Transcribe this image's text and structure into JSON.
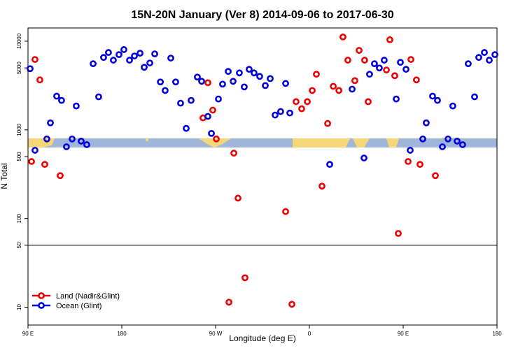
{
  "chart_data": {
    "type": "scatter",
    "title": "15N-20N January (Ver 8)   2014-09-06 to 2017-06-30",
    "x_label": "Longitude (deg E)",
    "y_label": "N Total",
    "xlim": [
      90,
      540
    ],
    "xticks": [
      {
        "value": 90,
        "label": "90 E"
      },
      180,
      {
        "value": 270,
        "label": "90 W"
      },
      {
        "value": 360,
        "label": "0"
      },
      {
        "value": 450,
        "label": "90 E"
      },
      {
        "value": 540,
        "label": "180"
      }
    ],
    "ylim": [
      6.3,
      14100
    ],
    "log_y": true,
    "yticks": [
      10,
      50,
      100,
      500,
      1000,
      5000,
      10000
    ],
    "break_line": 50,
    "legend": "bottom-left",
    "series": [
      {
        "name": "Land (Nadir&Glint)",
        "color": "#ee0000",
        "x": [
          93.4,
          96.7,
          101.4,
          106.1,
          120.9,
          257.9,
          262.6,
          267.3,
          270.7,
          282.8,
          287.5,
          291.5,
          298.2,
          337.2,
          343.2,
          347.2,
          352.6,
          358.0,
          362.7,
          366.7,
          372.1,
          377.5,
          382.9,
          388.3,
          392.2,
          396.9,
          403.6,
          407.7,
          413.0,
          416.4,
          433.9,
          437.2,
          441.9,
          445.3,
          454.7,
          457.4,
          462.7,
          466.1,
          480.9
        ],
        "values": [
          440,
          6220,
          3660,
          408,
          305,
          1365,
          3400,
          1670,
          790,
          11.4,
          547,
          170,
          21.5,
          120,
          10.8,
          2080,
          1730,
          2080,
          2780,
          4240,
          232,
          1180,
          3100,
          2780,
          11160,
          6110,
          3590,
          7880,
          6110,
          2080,
          4730,
          10380,
          4080,
          68,
          440,
          6220,
          3660,
          408,
          305
        ]
      },
      {
        "name": "Ocean (Glint)",
        "color": "#0000dd",
        "x": [
          92.0,
          96.7,
          108.1,
          111.5,
          117.5,
          122.2,
          126.9,
          132.3,
          136.3,
          141.0,
          146.4,
          152.5,
          157.8,
          162.5,
          167.2,
          171.9,
          177.3,
          182.0,
          187.4,
          192.1,
          197.5,
          201.5,
          206.9,
          211.6,
          217.0,
          221.6,
          227.0,
          231.7,
          236.4,
          241.8,
          246.5,
          252.5,
          256.6,
          262.6,
          266.0,
          272.7,
          276.7,
          282.1,
          286.8,
          292.8,
          297.5,
          302.2,
          306.9,
          312.3,
          317.7,
          322.4,
          327.1,
          332.4,
          337.2,
          341.2,
          379.5,
          401.0,
          412.4,
          417.7,
          422.4,
          427.1,
          431.8,
          443.3,
          447.3,
          452.7,
          456.7,
          468.8,
          472.1,
          478.2,
          482.9,
          487.6,
          493.0,
          497.6,
          501.7,
          507.0,
          512.4,
          518.5,
          522.5,
          527.9,
          532.6,
          538.0
        ],
        "values": [
          4900,
          589,
          790,
          1200,
          2400,
          2150,
          645,
          790,
          1860,
          747,
          681,
          5570,
          2360,
          6560,
          7460,
          6110,
          7060,
          8040,
          6110,
          6810,
          7320,
          5080,
          5680,
          7190,
          3470,
          2780,
          6450,
          3470,
          2000,
          1040,
          2150,
          3940,
          3530,
          1420,
          912,
          2230,
          3280,
          4560,
          3530,
          4390,
          3050,
          4820,
          4390,
          4010,
          3160,
          3790,
          1470,
          1610,
          3340,
          1550,
          408,
          2880,
          482,
          4240,
          5570,
          4990,
          6110,
          2230,
          5780,
          4820,
          589,
          790,
          1200,
          2400,
          2150,
          645,
          790,
          1860,
          747,
          681,
          5570,
          2360,
          6560,
          7460,
          6110,
          7060
        ]
      }
    ]
  }
}
